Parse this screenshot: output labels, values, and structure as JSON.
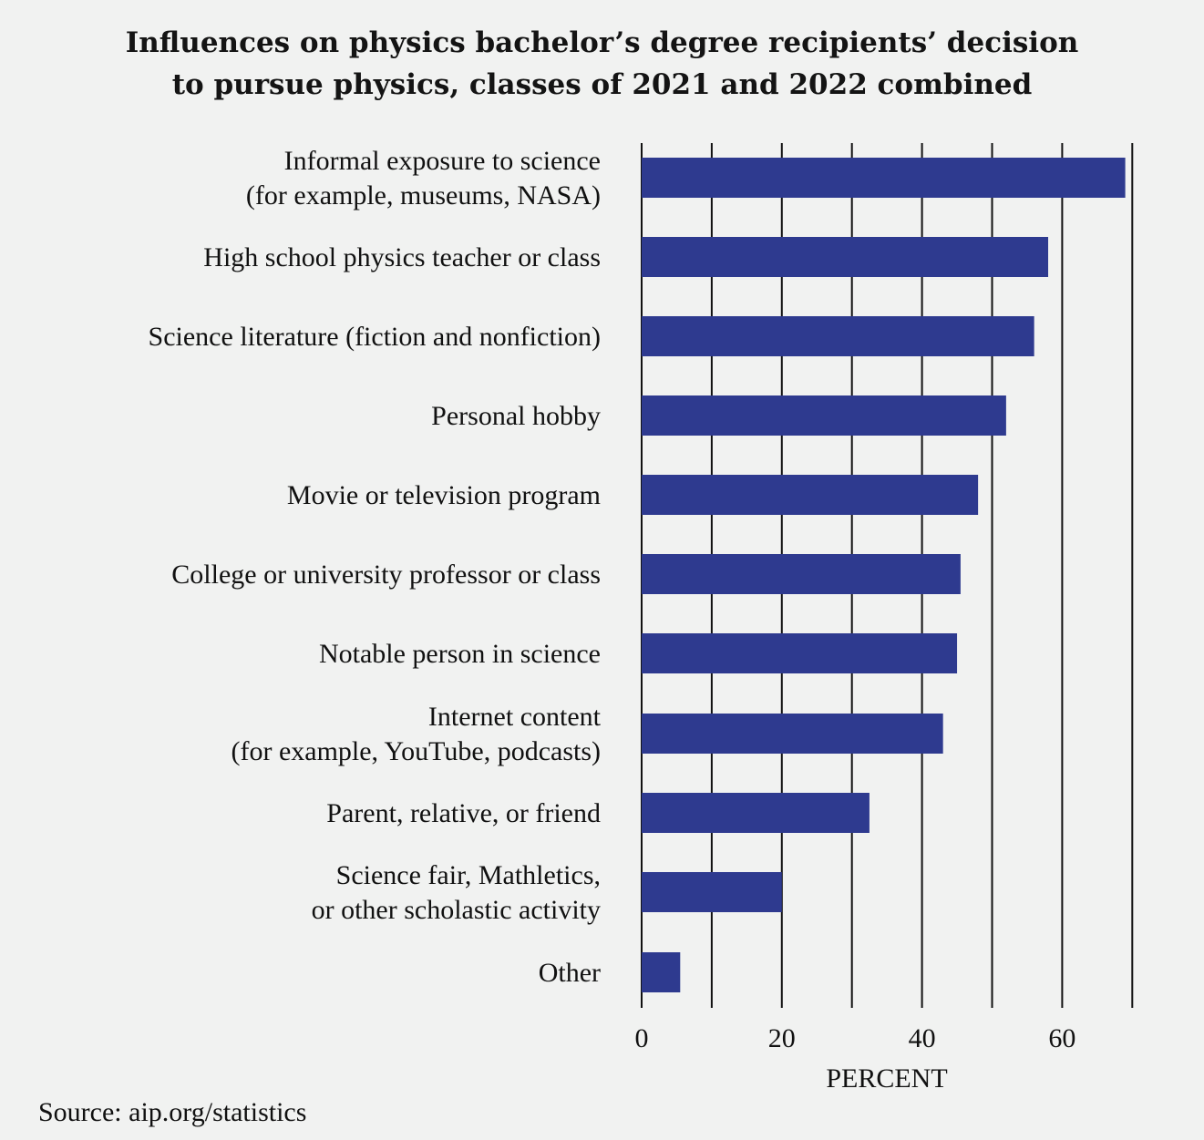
{
  "chart_data": {
    "type": "bar",
    "orientation": "horizontal",
    "title_lines": [
      "Influences on physics bachelor’s degree recipients’ decision",
      "to pursue physics, classes of 2021 and 2022 combined"
    ],
    "xlabel": "PERCENT",
    "ylabel": "",
    "xlim": [
      0,
      70
    ],
    "x_ticks": [
      0,
      20,
      40,
      60
    ],
    "grid": true,
    "grid_step": 10,
    "legend": "none",
    "bar_color": "#2e3a8f",
    "categories": [
      [
        "Informal exposure to science",
        "(for example, museums, NASA)"
      ],
      [
        "High school physics teacher or class"
      ],
      [
        "Science literature (fiction and nonfiction)"
      ],
      [
        "Personal hobby"
      ],
      [
        "Movie or television program"
      ],
      [
        "College or university professor or class"
      ],
      [
        "Notable person in science"
      ],
      [
        "Internet content",
        "(for example, YouTube, podcasts)"
      ],
      [
        "Parent, relative, or friend"
      ],
      [
        "Science fair, Mathletics,",
        "or other scholastic activity"
      ],
      [
        "Other"
      ]
    ],
    "values": [
      69,
      58,
      56,
      52,
      48,
      45.5,
      45,
      43,
      32.5,
      20,
      5.5
    ],
    "source": "Source: aip.org/statistics"
  }
}
